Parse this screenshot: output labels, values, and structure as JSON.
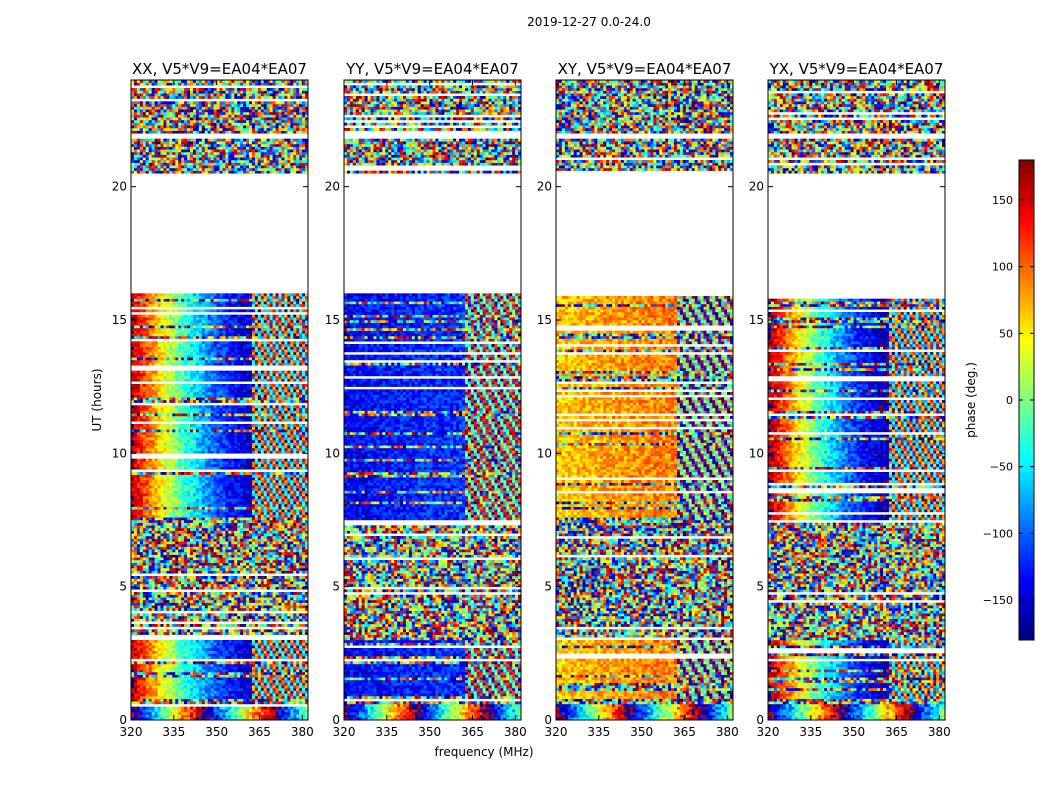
{
  "chart_data": {
    "type": "heatmap",
    "title": "2019-12-27 0.0-24.0",
    "xlabel": "frequency (MHz)",
    "ylabel": "UT (hours)",
    "xlim": [
      320,
      382
    ],
    "ylim": [
      0,
      24
    ],
    "x_ticks": [
      320,
      335,
      350,
      365,
      380
    ],
    "y_ticks": [
      0,
      5,
      10,
      15,
      20
    ],
    "colorbar": {
      "label": "phase (deg.)",
      "range": [
        -180,
        180
      ],
      "ticks": [
        150,
        100,
        50,
        0,
        -50,
        -100,
        -150
      ],
      "tick_labels": [
        "150",
        "100",
        "50",
        "0",
        "−50",
        "−100",
        "−150"
      ],
      "colormap": "jet"
    },
    "data_gap_ut": [
      [
        16,
        20.5
      ],
      [
        21.8,
        22
      ]
    ],
    "panels": [
      {
        "title": "XX, V5*V9=EA04*EA07",
        "lowband_phase": 160,
        "highband_phase": -150
      },
      {
        "title": "YY, V5*V9=EA04*EA07",
        "lowband_phase": -140,
        "highband_phase": -120
      },
      {
        "title": "XY, V5*V9=EA04*EA07",
        "lowband_phase": 60,
        "highband_phase": 90
      },
      {
        "title": "YX, V5*V9=EA04*EA07",
        "lowband_phase": 170,
        "highband_phase": -160
      }
    ]
  }
}
